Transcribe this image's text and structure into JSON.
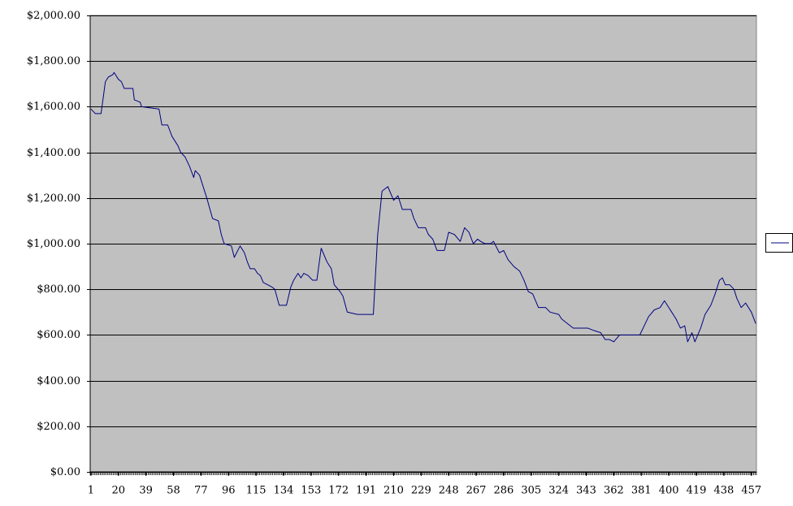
{
  "chart_data": {
    "type": "line",
    "color": "#000080",
    "grid": true,
    "xlim": [
      0.5,
      460.5
    ],
    "xticks": [
      1,
      20,
      39,
      58,
      77,
      96,
      115,
      134,
      153,
      172,
      191,
      210,
      229,
      248,
      267,
      286,
      305,
      324,
      343,
      362,
      381,
      400,
      419,
      438,
      457
    ],
    "ylim": [
      0,
      2000
    ],
    "yticks": [
      {
        "value": 0,
        "label": "$0.00"
      },
      {
        "value": 200,
        "label": "$200.00"
      },
      {
        "value": 400,
        "label": "$400.00"
      },
      {
        "value": 600,
        "label": "$600.00"
      },
      {
        "value": 800,
        "label": "$800.00"
      },
      {
        "value": 1000,
        "label": "$1,000.00"
      },
      {
        "value": 1200,
        "label": "$1,200.00"
      },
      {
        "value": 1400,
        "label": "$1,400.00"
      },
      {
        "value": 1600,
        "label": "$1,600.00"
      },
      {
        "value": 1800,
        "label": "$1,800.00"
      },
      {
        "value": 2000,
        "label": "$2,000.00"
      }
    ],
    "x": [
      1,
      4,
      8,
      11,
      13,
      16,
      17,
      20,
      22,
      24,
      30,
      31,
      35,
      36,
      48,
      50,
      54,
      57,
      61,
      63,
      66,
      69,
      72,
      73,
      76,
      78,
      81,
      85,
      89,
      91,
      93,
      98,
      100,
      104,
      107,
      109,
      111,
      114,
      116,
      118,
      120,
      123,
      126,
      128,
      131,
      136,
      139,
      141,
      144,
      146,
      148,
      151,
      154,
      157,
      160,
      164,
      167,
      169,
      173,
      175,
      178,
      185,
      194,
      196,
      199,
      202,
      206,
      210,
      213,
      216,
      222,
      224,
      227,
      232,
      234,
      237,
      240,
      245,
      248,
      252,
      256,
      259,
      262,
      265,
      268,
      270,
      273,
      277,
      279,
      283,
      286,
      289,
      293,
      297,
      300,
      303,
      306,
      310,
      315,
      318,
      324,
      326,
      330,
      334,
      342,
      344,
      348,
      353,
      356,
      359,
      362,
      366,
      380,
      383,
      386,
      390,
      394,
      397,
      399,
      402,
      405,
      408,
      411,
      413,
      416,
      418,
      422,
      425,
      429,
      432,
      435,
      437,
      439,
      442,
      445,
      447,
      450,
      453,
      457,
      460
    ],
    "values": [
      1590,
      1570,
      1570,
      1710,
      1730,
      1740,
      1750,
      1720,
      1710,
      1680,
      1680,
      1630,
      1620,
      1600,
      1590,
      1520,
      1520,
      1470,
      1430,
      1400,
      1380,
      1340,
      1290,
      1320,
      1300,
      1260,
      1200,
      1110,
      1100,
      1040,
      1000,
      990,
      940,
      990,
      960,
      920,
      890,
      890,
      870,
      860,
      830,
      820,
      810,
      800,
      730,
      730,
      810,
      840,
      870,
      850,
      870,
      860,
      840,
      840,
      980,
      920,
      890,
      820,
      790,
      770,
      700,
      690,
      690,
      690,
      1040,
      1230,
      1250,
      1190,
      1210,
      1150,
      1150,
      1110,
      1070,
      1070,
      1040,
      1020,
      970,
      970,
      1050,
      1040,
      1010,
      1070,
      1050,
      1000,
      1020,
      1010,
      1000,
      1000,
      1010,
      960,
      970,
      930,
      900,
      880,
      840,
      790,
      780,
      720,
      720,
      700,
      690,
      670,
      650,
      630,
      630,
      630,
      620,
      610,
      580,
      580,
      570,
      600,
      600,
      640,
      680,
      710,
      720,
      750,
      730,
      700,
      670,
      630,
      640,
      570,
      610,
      570,
      630,
      690,
      730,
      780,
      840,
      850,
      820,
      820,
      800,
      760,
      720,
      740,
      700,
      650
    ]
  }
}
